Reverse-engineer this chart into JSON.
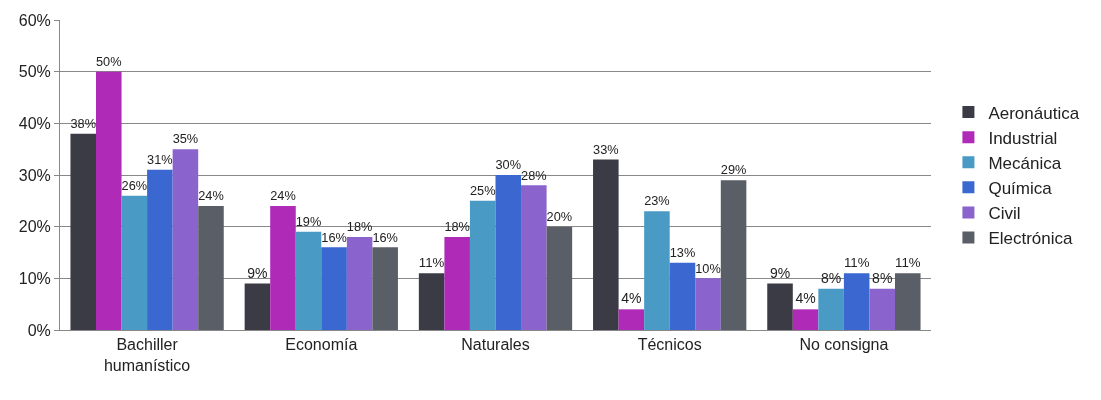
{
  "chart_data": {
    "type": "bar",
    "categories": [
      "Bachiller humanístico",
      "Economía",
      "Naturales",
      "Técnicos",
      "No consigna"
    ],
    "series": [
      {
        "name": "Aeronáutica",
        "color": "#3b3b45",
        "values": [
          38,
          9,
          11,
          33,
          9
        ],
        "value_labels": [
          "38%",
          "9%",
          "11%",
          "33%",
          "9%"
        ]
      },
      {
        "name": "Industrial",
        "color": "#b02ab8",
        "values": [
          50,
          24,
          18,
          4,
          4
        ],
        "value_labels": [
          "50%",
          "24%",
          "18%",
          "4%",
          "4%"
        ]
      },
      {
        "name": "Mecánica",
        "color": "#4a9ac6",
        "values": [
          26,
          19,
          25,
          23,
          8
        ],
        "value_labels": [
          "26%",
          "19%",
          "25%",
          "23%",
          "8%"
        ]
      },
      {
        "name": "Química",
        "color": "#3a67d0",
        "values": [
          31,
          16,
          30,
          13,
          11
        ],
        "value_labels": [
          "31%",
          "16%",
          "30%",
          "13%",
          "11%"
        ]
      },
      {
        "name": "Civil",
        "color": "#8a63cc",
        "values": [
          35,
          18,
          28,
          10,
          8
        ],
        "value_labels": [
          "35%",
          "18%",
          "28%",
          "10%",
          "8%"
        ]
      },
      {
        "name": "Electrónica",
        "color": "#5a5e66",
        "values": [
          24,
          16,
          20,
          29,
          11
        ],
        "value_labels": [
          "24%",
          "16%",
          "20%",
          "29%",
          "11%"
        ]
      }
    ],
    "ylim": [
      0,
      60
    ],
    "yticks": [
      {
        "value": 0,
        "label": "0%"
      },
      {
        "value": 10,
        "label": "10%"
      },
      {
        "value": 20,
        "label": "20%"
      },
      {
        "value": 30,
        "label": "30%"
      },
      {
        "value": 40,
        "label": "40%"
      },
      {
        "value": 50,
        "label": "50%"
      },
      {
        "value": 60,
        "label": "60%"
      }
    ],
    "grid": "y",
    "legend": "right"
  }
}
